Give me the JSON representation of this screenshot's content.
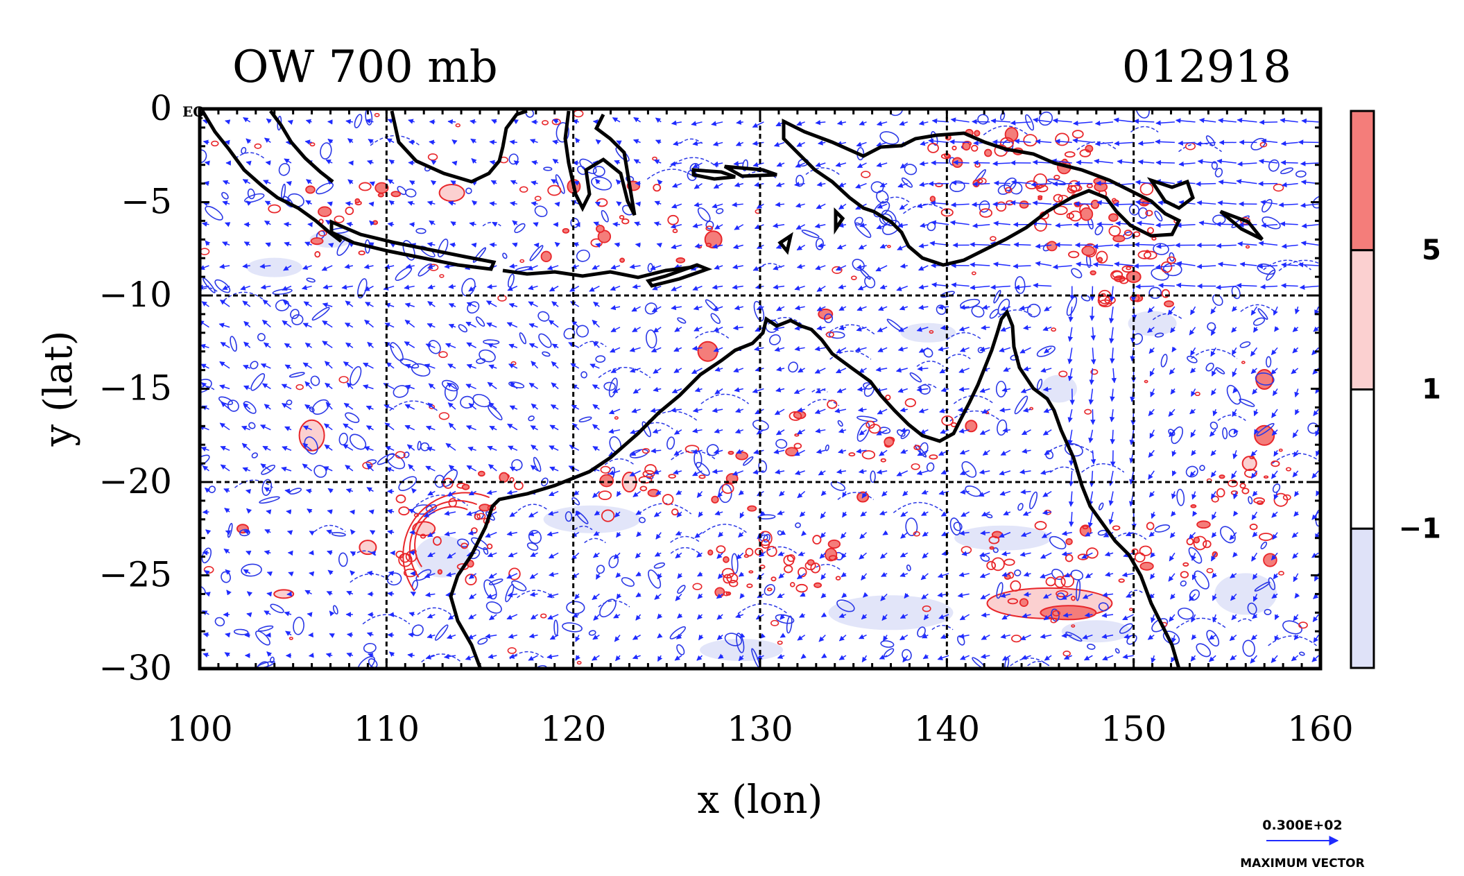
{
  "figure": {
    "title_left": "OW 700 mb",
    "title_right": "012918",
    "eq_label": "EQ"
  },
  "colors": {
    "wind_vector": "#1f2bff",
    "positive_contour": "#e8262a",
    "negative_contour": "#2a37e6",
    "positive_fill_strong": "#f47d7a",
    "positive_fill_weak": "#fbd0d0",
    "negative_fill": "#dfe2f8",
    "coast": "#000000",
    "grid": "#000000"
  },
  "chart_data": {
    "type": "map",
    "xlabel": "x (lon)",
    "ylabel": "y (lat)",
    "xlim": [
      100,
      160
    ],
    "ylim": [
      -30,
      0
    ],
    "xticks": [
      "100",
      "110",
      "120",
      "130",
      "140",
      "150",
      "160"
    ],
    "yticks": [
      "0",
      "−5",
      "−10",
      "−15",
      "−20",
      "−25",
      "−30"
    ],
    "grid_lon": [
      110,
      120,
      130,
      140,
      150
    ],
    "grid_lat": [
      -10,
      -20
    ],
    "legend": {
      "placement": "right",
      "bins": [
        {
          "from": 5,
          "color": "#f47d7a"
        },
        {
          "from": 1,
          "to": 5,
          "color": "#fbd0d0"
        },
        {
          "from": -1,
          "to": 1,
          "color": "#ffffff"
        },
        {
          "to": -1,
          "color": "#dfe2f8"
        }
      ],
      "labels": [
        "5",
        "1",
        "−1"
      ]
    },
    "reference_vector": {
      "value_label": "0.300E+02",
      "caption": "MAXIMUM VECTOR"
    }
  }
}
